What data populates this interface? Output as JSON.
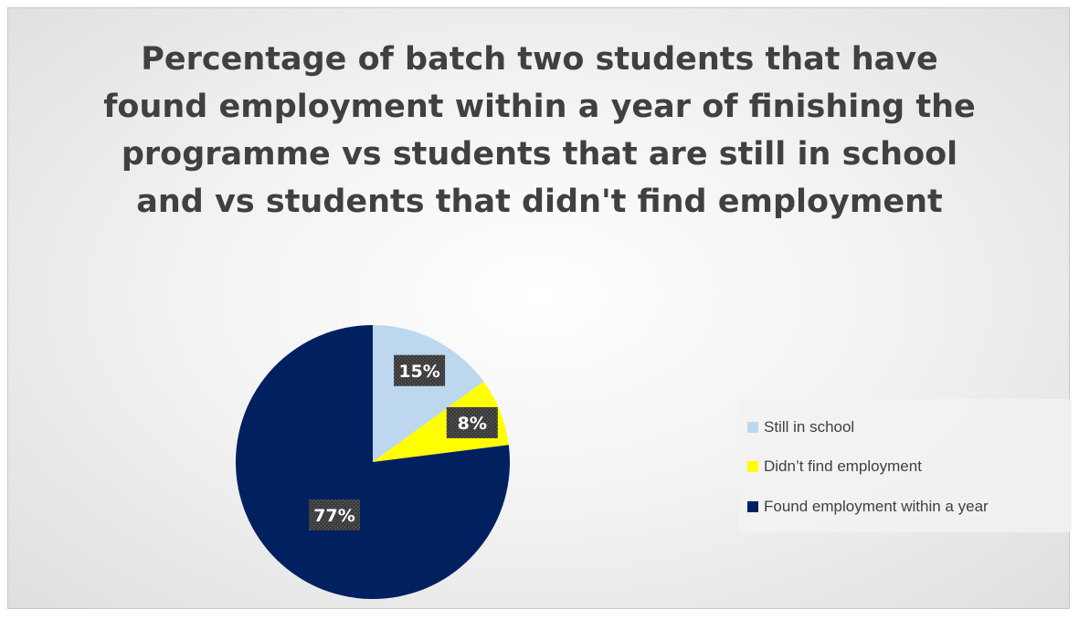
{
  "chart_data": {
    "type": "pie",
    "title": "Percentage of batch two students that have found employment within a year of finishing the programme vs students that are still in school and vs students that didn't find employment",
    "categories": [
      "Still in school",
      "Didn’t find employment",
      "Found employment within a year"
    ],
    "values": [
      15,
      8,
      77
    ],
    "data_labels": [
      "15%",
      "8%",
      "77%"
    ],
    "colors": [
      "#bdd7ee",
      "#ffff00",
      "#002060"
    ],
    "legend_position": "right"
  }
}
